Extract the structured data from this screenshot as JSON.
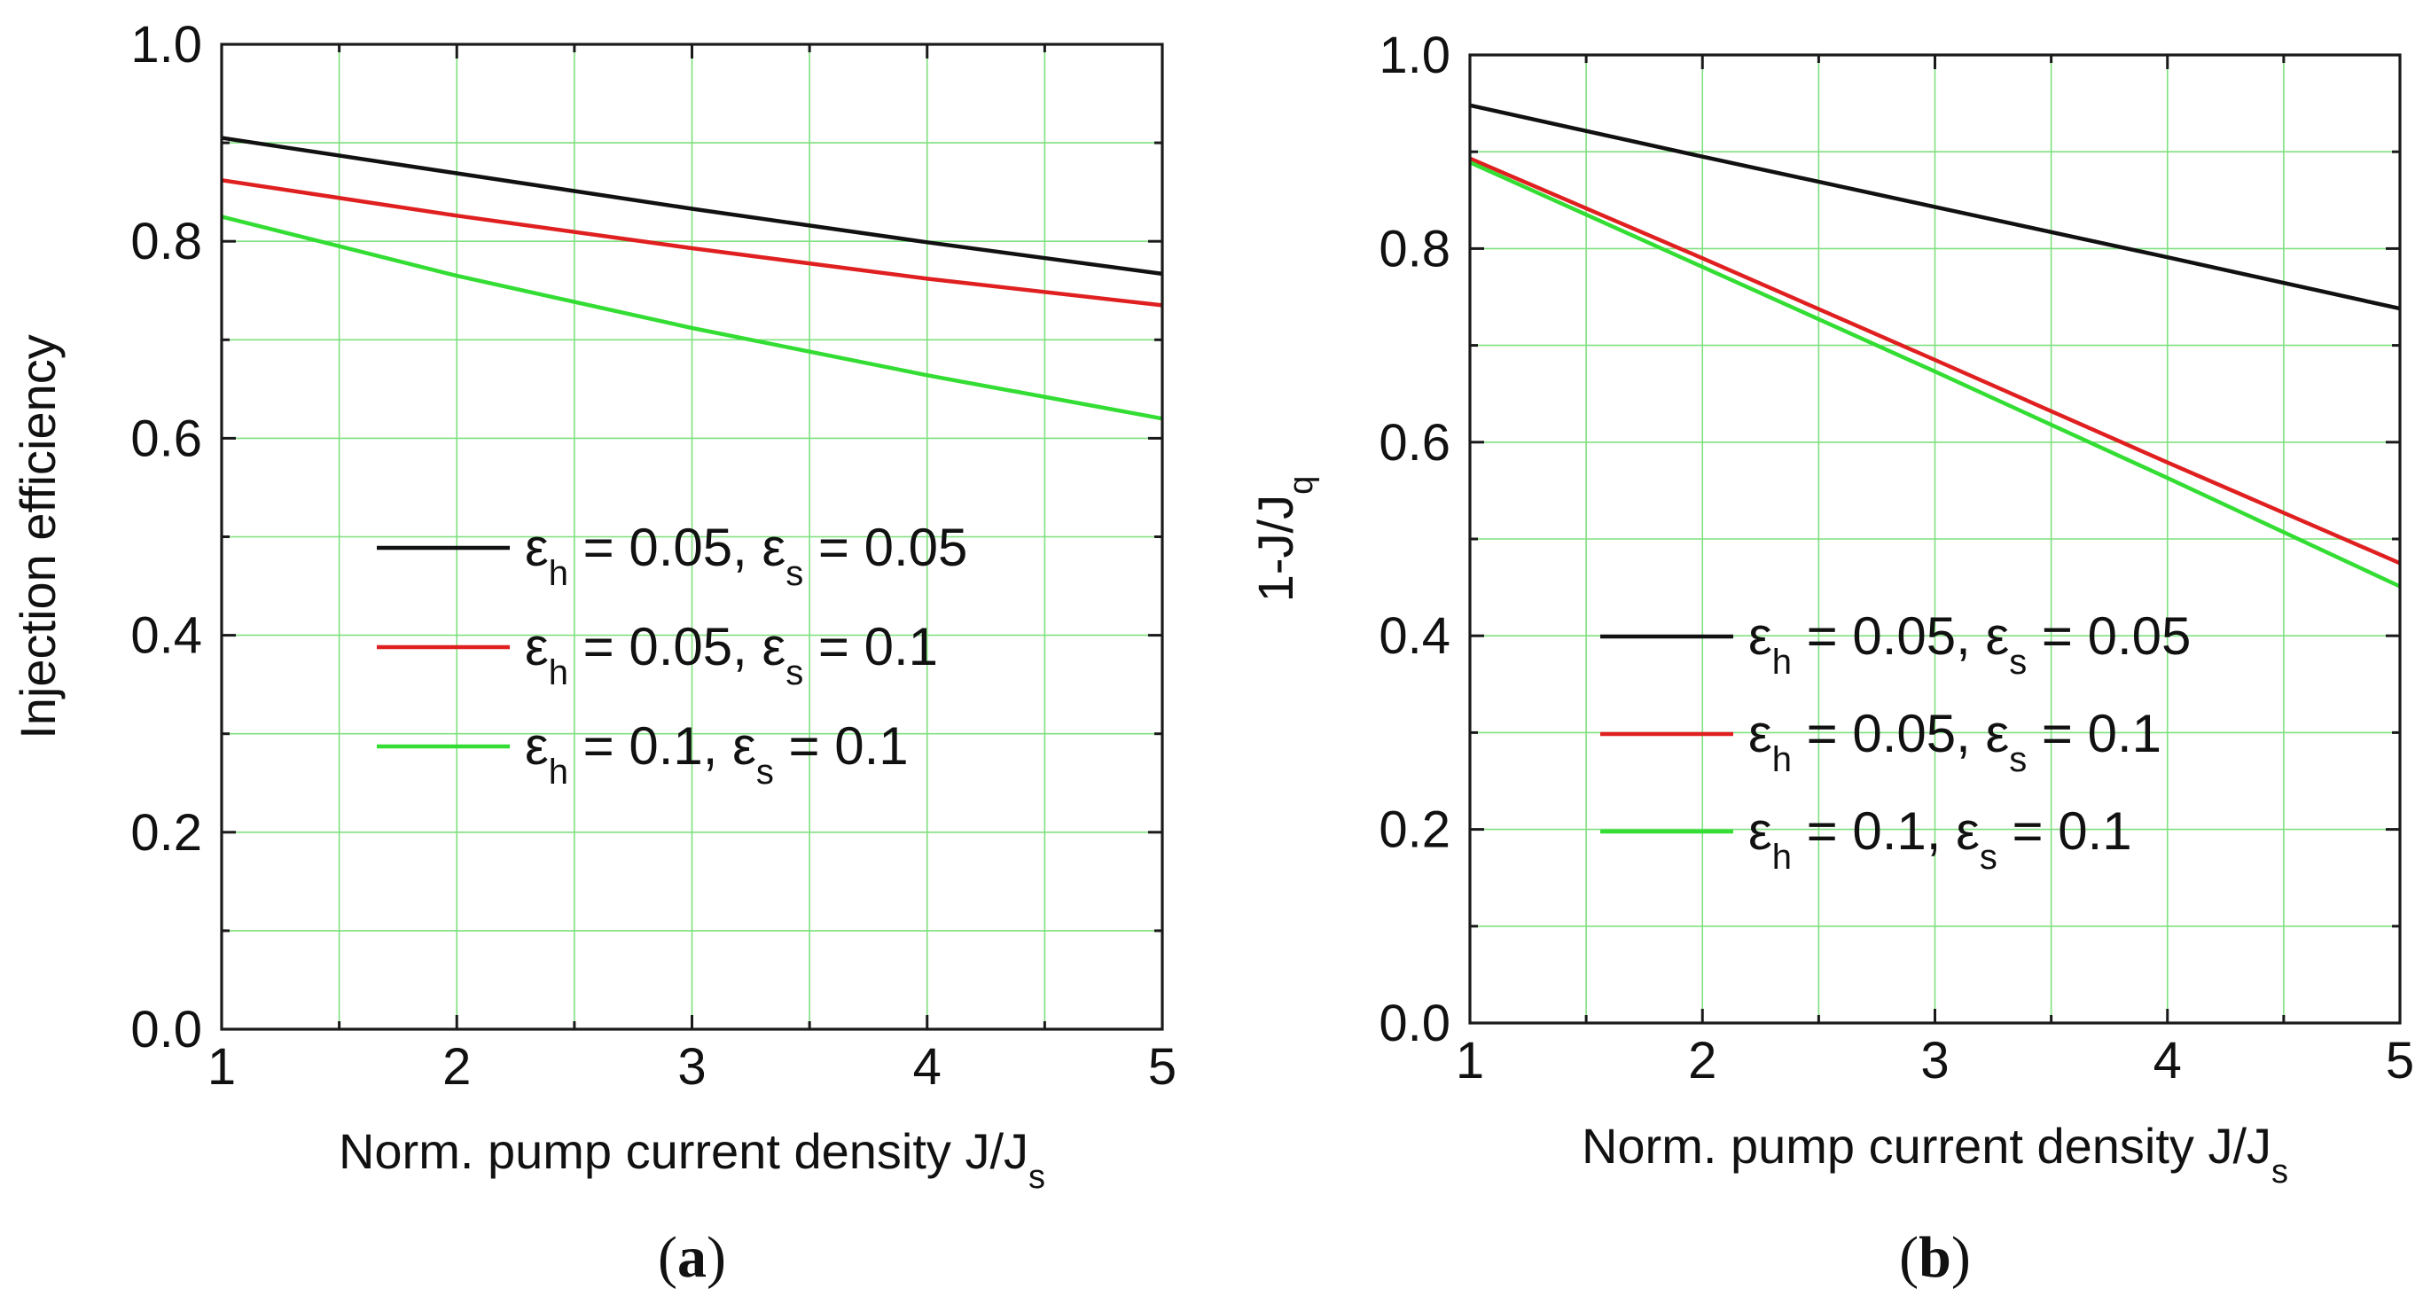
{
  "chart_data": [
    {
      "type": "line",
      "panel_label": "a",
      "xlabel": {
        "main": "Norm. pump current density J/J",
        "sub": "s"
      },
      "ylabel": {
        "main": "Injection efficiency",
        "sub": ""
      },
      "xlim": [
        1,
        5
      ],
      "ylim": [
        0,
        1
      ],
      "xticks": [
        "1",
        "2",
        "3",
        "4",
        "5"
      ],
      "yticks": [
        "0.0",
        "0.2",
        "0.4",
        "0.6",
        "0.8",
        "1.0"
      ],
      "grid": true,
      "grid_color": "#7FE07F",
      "legend_position": "center",
      "series": [
        {
          "name": "εh = 0.05, εs = 0.05",
          "eh": "0.05",
          "es": "0.05",
          "sep": ",",
          "color": "#111111",
          "x": [
            1,
            2,
            3,
            4,
            5
          ],
          "y": [
            0.905,
            0.869,
            0.833,
            0.799,
            0.767
          ]
        },
        {
          "name": "εh = 0.05, εs = 0.1",
          "eh": "0.05",
          "es": "0.1",
          "sep": ",",
          "color": "#e02020",
          "x": [
            1,
            2,
            3,
            4,
            5
          ],
          "y": [
            0.862,
            0.826,
            0.793,
            0.762,
            0.735
          ]
        },
        {
          "name": "εh = 0.1, εs = 0.1",
          "eh": "0.1",
          "es": "0.1",
          "sep": ",   ",
          "color": "#33dd33",
          "x": [
            1,
            2,
            3,
            4,
            5
          ],
          "y": [
            0.825,
            0.765,
            0.712,
            0.664,
            0.62
          ]
        }
      ]
    },
    {
      "type": "line",
      "panel_label": "b",
      "xlabel": {
        "main": "Norm. pump current density J/J",
        "sub": "s"
      },
      "ylabel": {
        "main": "1-J/J",
        "sub": "q"
      },
      "xlim": [
        1,
        5
      ],
      "ylim": [
        0,
        1
      ],
      "xticks": [
        "1",
        "2",
        "3",
        "4",
        "5"
      ],
      "yticks": [
        "0.0",
        "0.2",
        "0.4",
        "0.6",
        "0.8",
        "1.0"
      ],
      "grid": true,
      "grid_color": "#7FE07F",
      "legend_position": "center",
      "series": [
        {
          "name": "εh = 0.05, εs = 0.05",
          "eh": "0.05",
          "es": "0.05",
          "sep": ",",
          "color": "#111111",
          "x": [
            1,
            2,
            3,
            4,
            5
          ],
          "y": [
            0.948,
            0.895,
            0.843,
            0.791,
            0.738
          ]
        },
        {
          "name": "εh = 0.05, εs = 0.1",
          "eh": "0.05",
          "es": "0.1",
          "sep": ",",
          "color": "#e02020",
          "x": [
            1,
            2,
            3,
            4,
            5
          ],
          "y": [
            0.893,
            0.79,
            0.685,
            0.579,
            0.475
          ]
        },
        {
          "name": "εh = 0.1, εs = 0.1",
          "eh": "0.1",
          "es": "0.1",
          "sep": ",   ",
          "color": "#33dd33",
          "x": [
            1,
            2,
            3,
            4,
            5
          ],
          "y": [
            0.889,
            0.781,
            0.673,
            0.563,
            0.451
          ]
        }
      ]
    }
  ]
}
